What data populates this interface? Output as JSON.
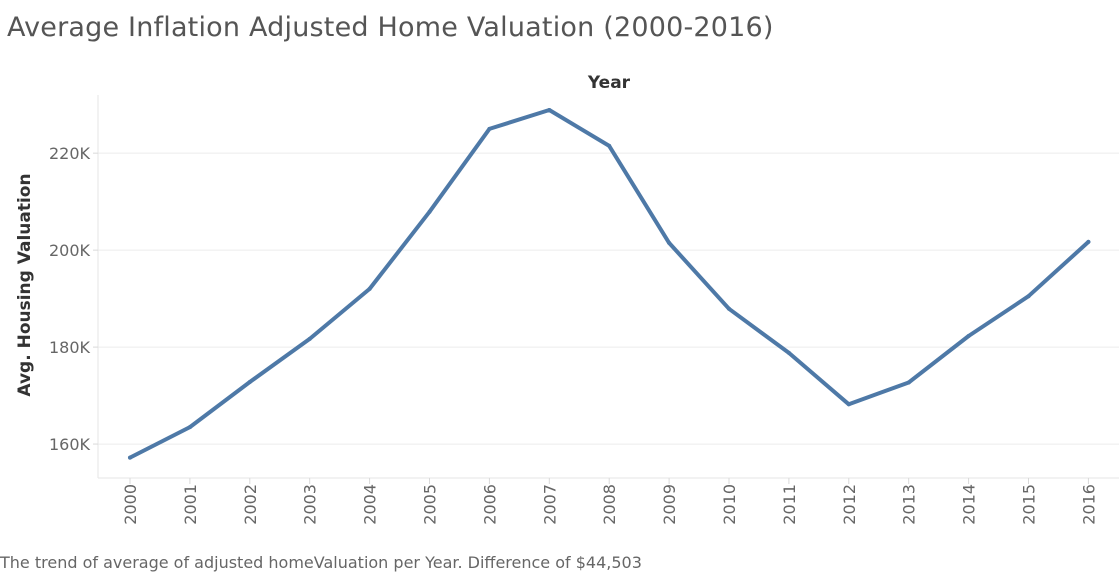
{
  "caption": "The trend of average of adjusted homeValuation per Year. Difference of  $44,503",
  "chart_data": {
    "type": "line",
    "title": "Average Inflation Adjusted Home Valuation (2000-2016)",
    "xlabel": "Year",
    "ylabel": "Avg. Housing Valuation",
    "categories": [
      "2000",
      "2001",
      "2002",
      "2003",
      "2004",
      "2005",
      "2006",
      "2007",
      "2008",
      "2009",
      "2010",
      "2011",
      "2012",
      "2013",
      "2014",
      "2015",
      "2016"
    ],
    "series": [
      {
        "values": [
          157200,
          163500,
          172800,
          181700,
          192000,
          207900,
          225000,
          228900,
          221500,
          201500,
          187900,
          178800,
          168200,
          172700,
          182300,
          190500,
          201700
        ]
      }
    ],
    "ylim": [
      153000,
      232000
    ],
    "yticks": [
      160000,
      180000,
      200000,
      220000
    ],
    "ytick_labels": [
      "160K",
      "180K",
      "200K",
      "220K"
    ],
    "grid": "horizontal",
    "line_color": "#4e79a7"
  }
}
